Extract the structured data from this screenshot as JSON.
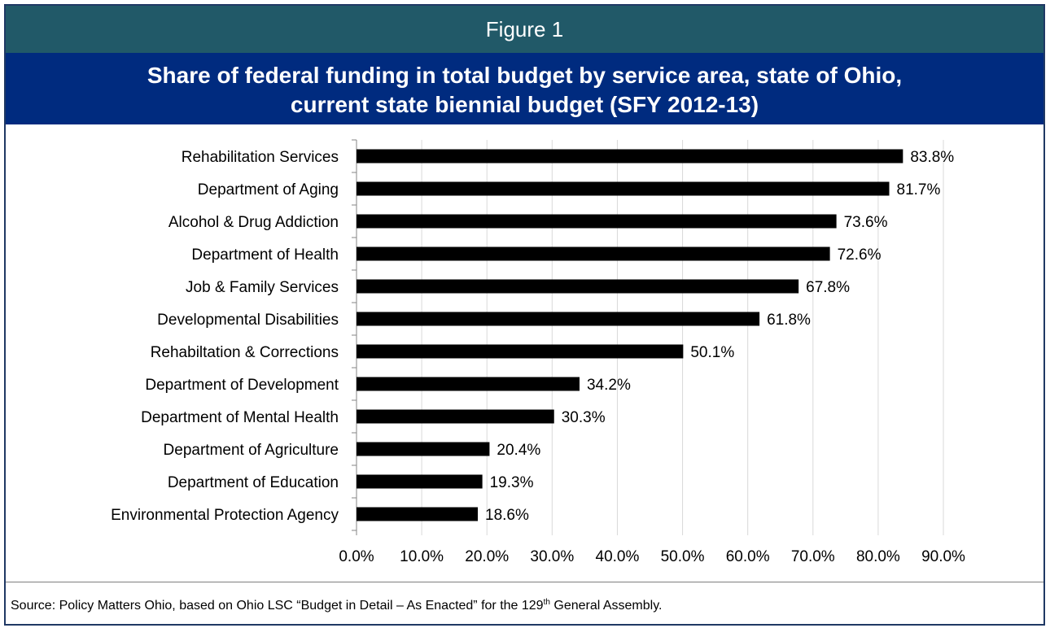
{
  "header": {
    "figure_label": "Figure 1",
    "title_line1": "Share of federal funding in total budget by service area, state of Ohio,",
    "title_line2": "current state biennial budget (SFY 2012-13)"
  },
  "footer": {
    "source_prefix": "Source:  Policy Matters Ohio, based on Ohio LSC “Budget in Detail – As Enacted” for the 129",
    "source_sup": "th",
    "source_suffix": " General Assembly."
  },
  "colors": {
    "bar": "#000000",
    "header_bg": "#215968",
    "title_bg": "#002b7f",
    "grid": "#d9d9d9"
  },
  "chart_data": {
    "type": "bar",
    "orientation": "horizontal",
    "title": "Share of federal funding in total budget by service area, state of Ohio, current state biennial budget (SFY 2012-13)",
    "categories": [
      "Rehabilitation Services",
      "Department of Aging",
      "Alcohol & Drug Addiction",
      "Department of Health",
      "Job & Family Services",
      "Developmental Disabilities",
      "Rehabiltation & Corrections",
      "Department of Development",
      "Department of Mental Health",
      "Department of Agriculture",
      "Department of Education",
      "Environmental Protection Agency"
    ],
    "values": [
      83.8,
      81.7,
      73.6,
      72.6,
      67.8,
      61.8,
      50.1,
      34.2,
      30.3,
      20.4,
      19.3,
      18.6
    ],
    "data_labels": [
      "83.8%",
      "81.7%",
      "73.6%",
      "72.6%",
      "67.8%",
      "61.8%",
      "50.1%",
      "34.2%",
      "30.3%",
      "20.4%",
      "19.3%",
      "18.6%"
    ],
    "xlim": [
      0,
      90
    ],
    "xticks": [
      "0.0%",
      "10.0%",
      "20.0%",
      "30.0%",
      "40.0%",
      "50.0%",
      "60.0%",
      "70.0%",
      "80.0%",
      "90.0%"
    ],
    "grid": "vertical",
    "legend": "none"
  }
}
